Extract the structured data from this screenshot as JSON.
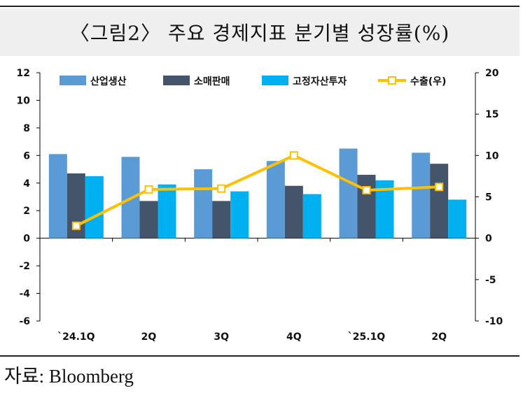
{
  "title": "〈그림2〉 주요 경제지표 분기별 성장률(%)",
  "source": "자료: Bloomberg",
  "colors": {
    "industrial_production": "#5b9bd5",
    "retail_sales": "#44546a",
    "fixed_asset_investment": "#00b0f0",
    "exports": "#ffc000"
  },
  "chart_data": {
    "type": "bar",
    "categories": [
      "`24.1Q",
      "2Q",
      "3Q",
      "4Q",
      "`25.1Q",
      "2Q"
    ],
    "series": [
      {
        "name": "산업생산",
        "axis": "left",
        "type": "bar",
        "values": [
          6.1,
          5.9,
          5.0,
          5.6,
          6.5,
          6.2
        ]
      },
      {
        "name": "소매판매",
        "axis": "left",
        "type": "bar",
        "values": [
          4.7,
          2.7,
          2.7,
          3.8,
          4.6,
          5.4
        ]
      },
      {
        "name": "고정자산투자",
        "axis": "left",
        "type": "bar",
        "values": [
          4.5,
          3.9,
          3.4,
          3.2,
          4.2,
          2.8
        ]
      },
      {
        "name": "수출(우)",
        "axis": "right",
        "type": "line",
        "values": [
          1.5,
          5.9,
          6.0,
          10.0,
          5.8,
          6.2
        ]
      }
    ],
    "y_left": {
      "ylim": [
        -6,
        12
      ],
      "ticks": [
        "-6",
        "-4",
        "-2",
        "0",
        "2",
        "4",
        "6",
        "8",
        "10",
        "12"
      ]
    },
    "y_right": {
      "ylim": [
        -10,
        20
      ],
      "ticks": [
        "-10",
        "-5",
        "0",
        "5",
        "10",
        "15",
        "20"
      ]
    },
    "legend": "top",
    "grid": false
  }
}
